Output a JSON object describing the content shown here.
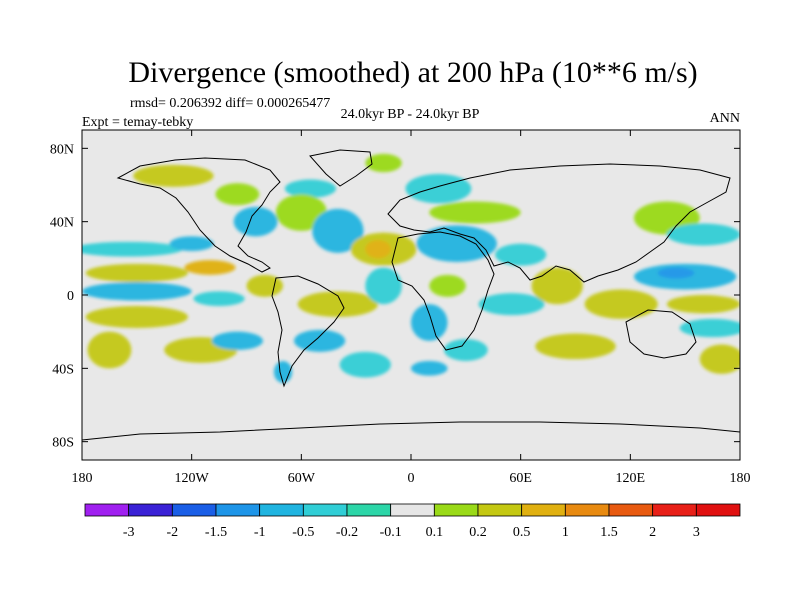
{
  "chart_data": {
    "type": "heatmap",
    "title": "Divergence (smoothed) at 200 hPa (10**6 m/s)",
    "stats_text": "rmsd= 0.206392  diff= 0.000265477",
    "expt_text": "Expt = temay-tebky",
    "period_text": "24.0kyr BP - 24.0kyr BP",
    "season_text": "ANN",
    "xlim": [
      -180,
      180
    ],
    "ylim": [
      -90,
      90
    ],
    "x_ticks": [
      {
        "value": -180,
        "label": "180"
      },
      {
        "value": -120,
        "label": "120W"
      },
      {
        "value": -60,
        "label": "60W"
      },
      {
        "value": 0,
        "label": "0"
      },
      {
        "value": 60,
        "label": "60E"
      },
      {
        "value": 120,
        "label": "120E"
      },
      {
        "value": 180,
        "label": "180"
      }
    ],
    "y_ticks": [
      {
        "value": 80,
        "label": "80N"
      },
      {
        "value": 40,
        "label": "40N"
      },
      {
        "value": 0,
        "label": "0"
      },
      {
        "value": -40,
        "label": "40S"
      },
      {
        "value": -80,
        "label": "80S"
      }
    ],
    "colorbar": {
      "labels": [
        "-3",
        "-2",
        "-1.5",
        "-1",
        "-0.5",
        "-0.2",
        "-0.1",
        "0.1",
        "0.2",
        "0.5",
        "1",
        "1.5",
        "2",
        "3"
      ],
      "colors": [
        "#a020f0",
        "#3a22d6",
        "#1a5ee6",
        "#1e95e8",
        "#20b4e0",
        "#30ced6",
        "#2cd6a8",
        "#e6e6e6",
        "#9ada18",
        "#c4c812",
        "#e0b010",
        "#e88a10",
        "#e85a10",
        "#e82018",
        "#e01010"
      ]
    },
    "regions": [
      {
        "lon": -130,
        "lat": 65,
        "rx": 22,
        "ry": 6,
        "color": "#c4c812"
      },
      {
        "lon": -95,
        "lat": 55,
        "rx": 12,
        "ry": 6,
        "color": "#9ada18"
      },
      {
        "lon": -55,
        "lat": 58,
        "rx": 14,
        "ry": 5,
        "color": "#30ced6"
      },
      {
        "lon": -15,
        "lat": 72,
        "rx": 10,
        "ry": 5,
        "color": "#9ada18"
      },
      {
        "lon": 15,
        "lat": 58,
        "rx": 18,
        "ry": 8,
        "color": "#30ced6"
      },
      {
        "lon": 35,
        "lat": 45,
        "rx": 25,
        "ry": 6,
        "color": "#9ada18"
      },
      {
        "lon": -60,
        "lat": 45,
        "rx": 14,
        "ry": 10,
        "color": "#9ada18"
      },
      {
        "lon": -85,
        "lat": 40,
        "rx": 12,
        "ry": 8,
        "color": "#20b4e0"
      },
      {
        "lon": -40,
        "lat": 35,
        "rx": 14,
        "ry": 12,
        "color": "#20b4e0"
      },
      {
        "lon": -15,
        "lat": 25,
        "rx": 18,
        "ry": 9,
        "color": "#c4c812"
      },
      {
        "lon": -18,
        "lat": 25,
        "rx": 7,
        "ry": 5,
        "color": "#e0b010"
      },
      {
        "lon": 25,
        "lat": 28,
        "rx": 22,
        "ry": 10,
        "color": "#20b4e0"
      },
      {
        "lon": 60,
        "lat": 22,
        "rx": 14,
        "ry": 6,
        "color": "#30ced6"
      },
      {
        "lon": 140,
        "lat": 42,
        "rx": 18,
        "ry": 9,
        "color": "#9ada18"
      },
      {
        "lon": 160,
        "lat": 33,
        "rx": 20,
        "ry": 6,
        "color": "#30ced6"
      },
      {
        "lon": -155,
        "lat": 25,
        "rx": 30,
        "ry": 4,
        "color": "#30ced6"
      },
      {
        "lon": -120,
        "lat": 28,
        "rx": 12,
        "ry": 4,
        "color": "#20b4e0"
      },
      {
        "lon": -150,
        "lat": 12,
        "rx": 28,
        "ry": 5,
        "color": "#c4c812"
      },
      {
        "lon": -110,
        "lat": 15,
        "rx": 14,
        "ry": 4,
        "color": "#e0b010"
      },
      {
        "lon": -150,
        "lat": 2,
        "rx": 30,
        "ry": 5,
        "color": "#20b4e0"
      },
      {
        "lon": -105,
        "lat": -2,
        "rx": 14,
        "ry": 4,
        "color": "#30ced6"
      },
      {
        "lon": -150,
        "lat": -12,
        "rx": 28,
        "ry": 6,
        "color": "#c4c812"
      },
      {
        "lon": -80,
        "lat": 5,
        "rx": 10,
        "ry": 6,
        "color": "#c4c812"
      },
      {
        "lon": -40,
        "lat": -5,
        "rx": 22,
        "ry": 7,
        "color": "#c4c812"
      },
      {
        "lon": -50,
        "lat": -25,
        "rx": 14,
        "ry": 6,
        "color": "#20b4e0"
      },
      {
        "lon": -15,
        "lat": 5,
        "rx": 10,
        "ry": 10,
        "color": "#30ced6"
      },
      {
        "lon": 10,
        "lat": -15,
        "rx": 10,
        "ry": 10,
        "color": "#20b4e0"
      },
      {
        "lon": 20,
        "lat": 5,
        "rx": 10,
        "ry": 6,
        "color": "#9ada18"
      },
      {
        "lon": 55,
        "lat": -5,
        "rx": 18,
        "ry": 6,
        "color": "#30ced6"
      },
      {
        "lon": 80,
        "lat": 5,
        "rx": 14,
        "ry": 10,
        "color": "#c4c812"
      },
      {
        "lon": 115,
        "lat": -5,
        "rx": 20,
        "ry": 8,
        "color": "#c4c812"
      },
      {
        "lon": 150,
        "lat": 10,
        "rx": 28,
        "ry": 7,
        "color": "#20b4e0"
      },
      {
        "lon": 145,
        "lat": 12,
        "rx": 10,
        "ry": 3,
        "color": "#1e95e8"
      },
      {
        "lon": 160,
        "lat": -5,
        "rx": 20,
        "ry": 5,
        "color": "#c4c812"
      },
      {
        "lon": 165,
        "lat": -18,
        "rx": 18,
        "ry": 5,
        "color": "#30ced6"
      },
      {
        "lon": -165,
        "lat": -30,
        "rx": 12,
        "ry": 10,
        "color": "#c4c812"
      },
      {
        "lon": -115,
        "lat": -30,
        "rx": 20,
        "ry": 7,
        "color": "#c4c812"
      },
      {
        "lon": -95,
        "lat": -25,
        "rx": 14,
        "ry": 5,
        "color": "#20b4e0"
      },
      {
        "lon": -25,
        "lat": -38,
        "rx": 14,
        "ry": 7,
        "color": "#30ced6"
      },
      {
        "lon": 30,
        "lat": -30,
        "rx": 12,
        "ry": 6,
        "color": "#30ced6"
      },
      {
        "lon": 90,
        "lat": -28,
        "rx": 22,
        "ry": 7,
        "color": "#c4c812"
      },
      {
        "lon": 170,
        "lat": -35,
        "rx": 12,
        "ry": 8,
        "color": "#c4c812"
      },
      {
        "lon": -70,
        "lat": -42,
        "rx": 5,
        "ry": 6,
        "color": "#20b4e0"
      },
      {
        "lon": 10,
        "lat": -40,
        "rx": 10,
        "ry": 4,
        "color": "#20b4e0"
      }
    ]
  }
}
